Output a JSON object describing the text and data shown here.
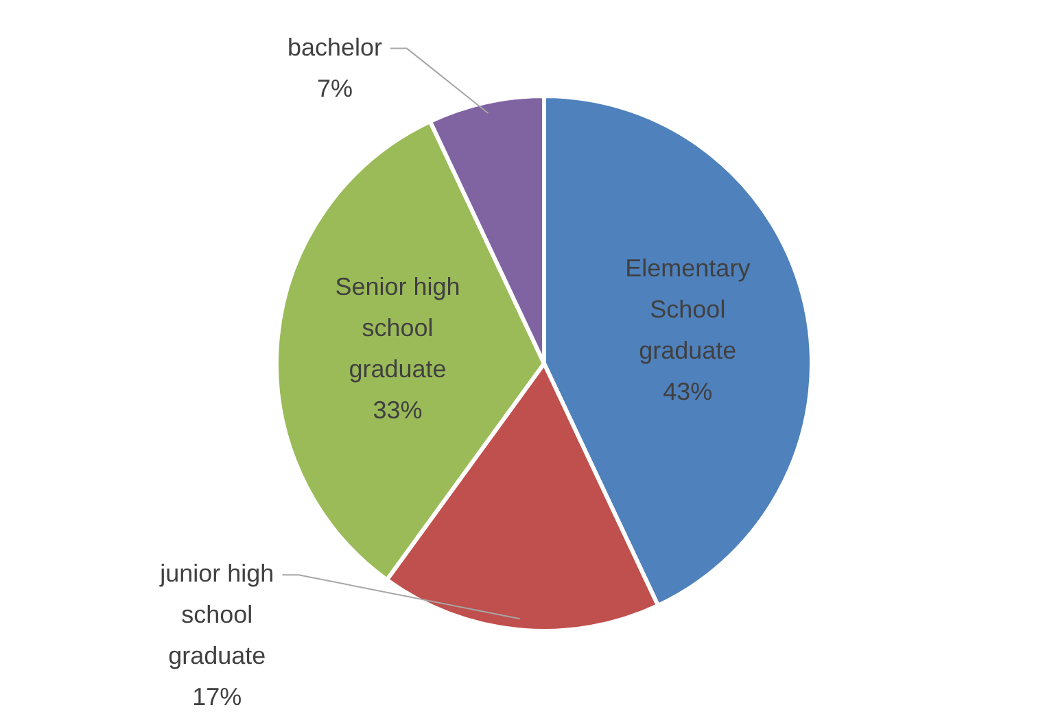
{
  "chart_data": {
    "type": "pie",
    "categories": [
      "Elementary School graduate",
      "junior high school graduate",
      "Senior high school graduate",
      "bachelor"
    ],
    "values": [
      43,
      17,
      33,
      7
    ],
    "colors": [
      "#4f81bd",
      "#c0504d",
      "#9bbb59",
      "#8064a2"
    ],
    "value_labels": [
      "43%",
      "17%",
      "33%",
      "7%"
    ],
    "legend": false
  }
}
